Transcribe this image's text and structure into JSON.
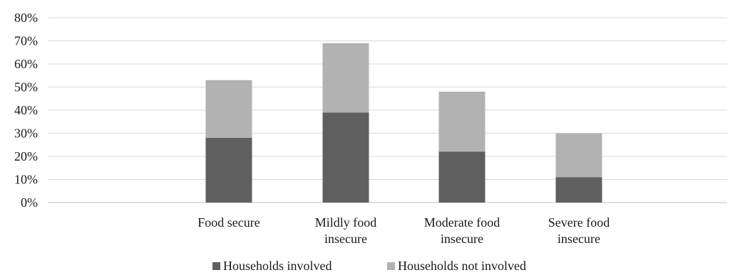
{
  "chart_data": {
    "type": "bar",
    "stacked": true,
    "title": "",
    "xlabel": "",
    "ylabel": "",
    "categories": [
      [
        "Food secure"
      ],
      [
        "Mildly food",
        "insecure"
      ],
      [
        "Moderate food",
        "insecure"
      ],
      [
        "Severe food",
        "insecure"
      ]
    ],
    "series": [
      {
        "name": "Households involved",
        "values": [
          28,
          39,
          22,
          11
        ],
        "color": "#5f5f5f"
      },
      {
        "name": "Households not involved",
        "values": [
          25,
          30,
          26,
          19
        ],
        "color": "#b2b2b2"
      }
    ],
    "yticks": [
      "0%",
      "10%",
      "20%",
      "30%",
      "40%",
      "50%",
      "60%",
      "70%",
      "80%"
    ],
    "ylim": [
      0,
      80
    ],
    "grid": true,
    "legend_position": "bottom"
  }
}
